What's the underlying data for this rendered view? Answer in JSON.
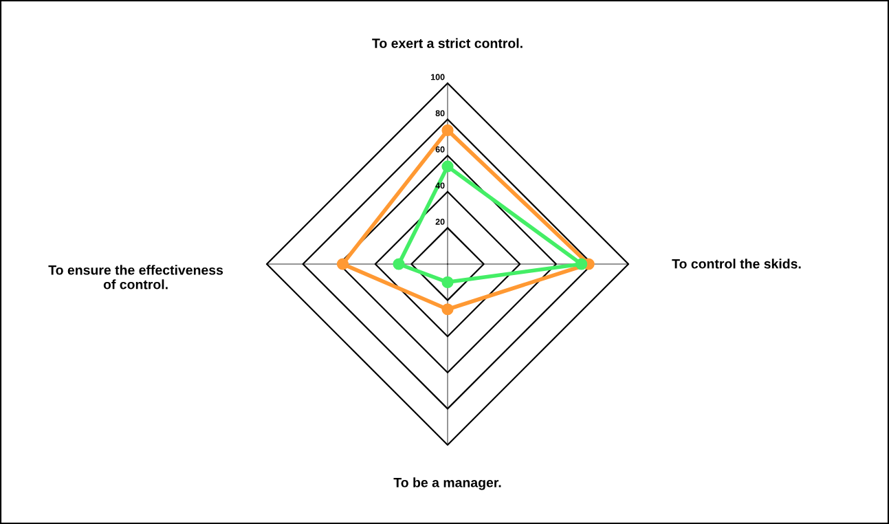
{
  "chart_data": {
    "type": "radar",
    "categories": [
      "To exert a strict control.",
      "To control the skids.",
      "To be a manager.",
      "To ensure the effectiveness of control."
    ],
    "series": [
      {
        "color": "#ff9933",
        "values": [
          74,
          78,
          25,
          58
        ]
      },
      {
        "color": "#44ee66",
        "values": [
          54,
          74,
          10,
          27
        ]
      }
    ],
    "ylim": [
      0,
      100
    ],
    "yticks": [
      20,
      40,
      60,
      80,
      100
    ],
    "grid": true,
    "legend": false,
    "marker": "circle",
    "line_style": "solid"
  }
}
